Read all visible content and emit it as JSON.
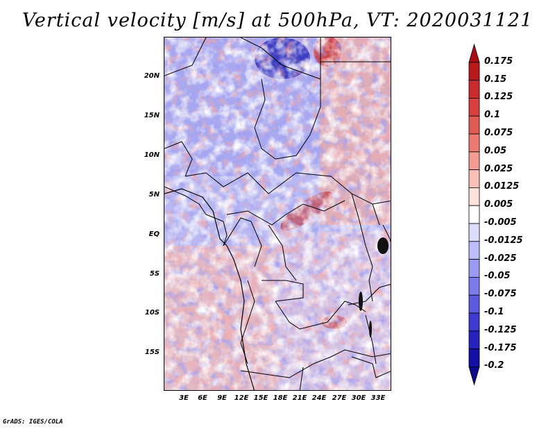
{
  "title": "Vertical velocity [m/s] at 500hPa, VT: 2020031121",
  "credit": "GrADS: IGES/COLA",
  "map": {
    "lat_labels": [
      "20N",
      "15N",
      "10N",
      "5N",
      "EQ",
      "5S",
      "10S",
      "15S"
    ],
    "lon_labels": [
      "3E",
      "6E",
      "9E",
      "12E",
      "15E",
      "18E",
      "21E",
      "24E",
      "27E",
      "30E",
      "33E"
    ]
  },
  "colorbar": {
    "labels": [
      "0.175",
      "0.15",
      "0.125",
      "0.1",
      "0.075",
      "0.05",
      "0.025",
      "0.0125",
      "0.005",
      "-0.005",
      "-0.0125",
      "-0.025",
      "-0.05",
      "-0.075",
      "-0.1",
      "-0.125",
      "-0.175",
      "-0.2"
    ],
    "colors": [
      "#a80e14",
      "#b81a1c",
      "#c82c2c",
      "#d84040",
      "#e05a54",
      "#ea7a72",
      "#f29c94",
      "#f8c0b8",
      "#fde2dc",
      "#ffffff",
      "#dcdcfc",
      "#bcbcf8",
      "#9a9af0",
      "#7a7ae8",
      "#5a5ae0",
      "#3c3cd0",
      "#2424bc",
      "#1010a4",
      "#0a0a8c"
    ]
  }
}
